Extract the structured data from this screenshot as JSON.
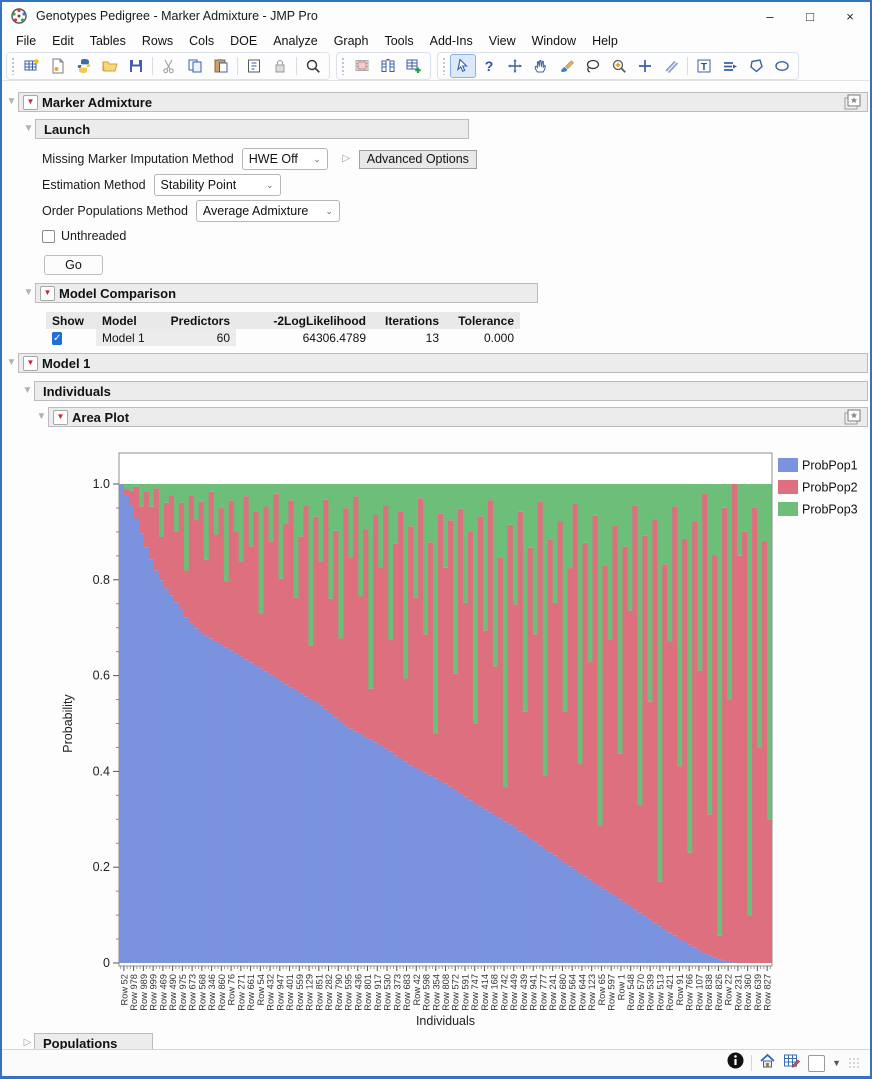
{
  "window": {
    "title": "Genotypes Pedigree - Marker Admixture - JMP Pro",
    "controls": {
      "minimize": "–",
      "maximize": "□",
      "close": "×"
    }
  },
  "menu": {
    "items": [
      "File",
      "Edit",
      "Tables",
      "Rows",
      "Cols",
      "DOE",
      "Analyze",
      "Graph",
      "Tools",
      "Add-Ins",
      "View",
      "Window",
      "Help"
    ]
  },
  "toolbar": {
    "selected": "arrow-tool",
    "groups": [
      [
        "new-data-table",
        "new-script",
        "python",
        "open",
        "save",
        "sep",
        "cut",
        "copy",
        "paste",
        "sep",
        "journal",
        "lock",
        "sep",
        "search"
      ],
      [
        "data-grid",
        "split-columns",
        "add-rows"
      ],
      [
        "arrow-tool",
        "help-tool",
        "move-tool",
        "grabber-tool",
        "brush-tool",
        "lasso-tool",
        "magnifier-tool",
        "crosshair-tool",
        "annotate-tool",
        "sep",
        "text-tool",
        "line-tool",
        "polygon-tool",
        "oval-tool"
      ]
    ]
  },
  "outline": {
    "marker_admixture": {
      "title": "Marker Admixture"
    },
    "launch": {
      "title": "Launch",
      "fields": [
        {
          "label": "Missing Marker Imputation Method",
          "value": "HWE Off"
        },
        {
          "label": "Estimation Method",
          "value": "Stability Point"
        },
        {
          "label": "Order Populations Method",
          "value": "Average Admixture"
        }
      ],
      "advanced_options_label": "Advanced Options",
      "unthreaded_label": "Unthreaded",
      "unthreaded_checked": false,
      "go_label": "Go"
    },
    "model_comparison": {
      "title": "Model Comparison",
      "table": {
        "columns": [
          "Show",
          "Model",
          "Predictors",
          "-2LogLikelihood",
          "Iterations",
          "Tolerance"
        ],
        "rows": [
          {
            "show": true,
            "model": "Model 1",
            "predictors": "60",
            "neg2loglikelihood": "64306.4789",
            "iterations": "13",
            "tolerance": "0.000"
          }
        ]
      }
    },
    "model1": {
      "title": "Model 1"
    },
    "individuals": {
      "title": "Individuals"
    },
    "area_plot": {
      "title": "Area Plot"
    },
    "populations": {
      "title": "Populations"
    }
  },
  "chart_data": {
    "type": "area",
    "title": "",
    "xlabel": "Individuals",
    "ylabel": "Probability",
    "ylim": [
      0,
      1.065
    ],
    "grid": false,
    "legend_position": "right",
    "y_tick_values": [
      0,
      0.2,
      0.4,
      0.6,
      0.8,
      1.0
    ],
    "y_tick_labels": [
      "0",
      "0.2",
      "0.4",
      "0.6",
      "0.8",
      "1.0"
    ],
    "series": [
      {
        "name": "ProbPop1",
        "color": "#7b93de"
      },
      {
        "name": "ProbPop2",
        "color": "#dd6f7e"
      },
      {
        "name": "ProbPop3",
        "color": "#6cbe78"
      }
    ],
    "x_tick_labels": [
      "Row 52",
      "Row 978",
      "Row 989",
      "Row 999",
      "Row 469",
      "Row 490",
      "Row 975",
      "Row 673",
      "Row 568",
      "Row 346",
      "Row 860",
      "Row 76",
      "Row 271",
      "Row 661",
      "Row 54",
      "Row 432",
      "Row 947",
      "Row 401",
      "Row 559",
      "Row 129",
      "Row 851",
      "Row 282",
      "Row 790",
      "Row 595",
      "Row 436",
      "Row 801",
      "Row 917",
      "Row 530",
      "Row 373",
      "Row 683",
      "Row 42",
      "Row 598",
      "Row 354",
      "Row 808",
      "Row 572",
      "Row 591",
      "Row 747",
      "Row 414",
      "Row 168",
      "Row 742",
      "Row 449",
      "Row 439",
      "Row 941",
      "Row 777",
      "Row 241",
      "Row 680",
      "Row 564",
      "Row 644",
      "Row 123",
      "Row 65",
      "Row 597",
      "Row 1",
      "Row 548",
      "Row 570",
      "Row 539",
      "Row 513",
      "Row 421",
      "Row 91",
      "Row 766",
      "Row 107",
      "Row 838",
      "Row 826",
      "Row 22",
      "Row 231",
      "Row 360",
      "Row 639",
      "Row 827"
    ],
    "pop1_top": [
      1.0,
      0.977,
      0.954,
      0.928,
      0.897,
      0.868,
      0.842,
      0.819,
      0.799,
      0.782,
      0.768,
      0.753,
      0.737,
      0.722,
      0.71,
      0.699,
      0.69,
      0.683,
      0.677,
      0.671,
      0.665,
      0.659,
      0.653,
      0.646,
      0.64,
      0.634,
      0.628,
      0.621,
      0.615,
      0.608,
      0.602,
      0.595,
      0.588,
      0.582,
      0.576,
      0.57,
      0.563,
      0.557,
      0.551,
      0.545,
      0.537,
      0.529,
      0.521,
      0.512,
      0.504,
      0.496,
      0.489,
      0.483,
      0.478,
      0.472,
      0.466,
      0.461,
      0.455,
      0.448,
      0.441,
      0.434,
      0.427,
      0.42,
      0.413,
      0.407,
      0.402,
      0.397,
      0.391,
      0.386,
      0.38,
      0.375,
      0.368,
      0.361,
      0.354,
      0.347,
      0.34,
      0.333,
      0.327,
      0.321,
      0.315,
      0.308,
      0.302,
      0.296,
      0.29,
      0.283,
      0.275,
      0.268,
      0.26,
      0.253,
      0.246,
      0.238,
      0.231,
      0.224,
      0.217,
      0.209,
      0.202,
      0.195,
      0.188,
      0.181,
      0.174,
      0.167,
      0.16,
      0.153,
      0.147,
      0.14,
      0.133,
      0.126,
      0.119,
      0.112,
      0.105,
      0.098,
      0.091,
      0.084,
      0.077,
      0.07,
      0.063,
      0.057,
      0.05,
      0.044,
      0.038,
      0.032,
      0.026,
      0.02,
      0.015,
      0.011,
      0.007,
      0.005,
      0.002,
      0.001,
      0.0,
      0.0,
      0.0,
      0.0,
      0.0,
      0.0,
      0.0
    ],
    "pop2_fill_fraction": [
      0.3,
      0.5,
      0.7,
      0.92,
      0.55,
      0.88,
      0.7,
      0.95,
      0.45,
      0.82,
      0.9,
      0.6,
      0.85,
      0.35,
      0.92,
      0.75,
      0.88,
      0.5,
      0.95,
      0.68,
      0.85,
      0.4,
      0.9,
      0.72,
      0.55,
      0.93,
      0.65,
      0.85,
      0.3,
      0.88,
      0.7,
      0.95,
      0.52,
      0.8,
      0.92,
      0.45,
      0.75,
      0.9,
      0.25,
      0.85,
      0.65,
      0.93,
      0.5,
      0.8,
      0.35,
      0.9,
      0.7,
      0.95,
      0.55,
      0.82,
      0.2,
      0.88,
      0.68,
      0.92,
      0.42,
      0.78,
      0.9,
      0.3,
      0.85,
      0.6,
      0.95,
      0.48,
      0.8,
      0.15,
      0.9,
      0.72,
      0.88,
      0.38,
      0.92,
      0.62,
      0.85,
      0.25,
      0.9,
      0.55,
      0.95,
      0.45,
      0.78,
      0.1,
      0.88,
      0.65,
      0.92,
      0.35,
      0.82,
      0.58,
      0.95,
      0.2,
      0.85,
      0.68,
      0.9,
      0.4,
      0.78,
      0.95,
      0.28,
      0.85,
      0.55,
      0.92,
      0.15,
      0.8,
      0.62,
      0.9,
      0.35,
      0.85,
      0.7,
      0.95,
      0.25,
      0.88,
      0.5,
      0.92,
      0.1,
      0.82,
      0.65,
      0.95,
      0.38,
      0.88,
      0.2,
      0.92,
      0.6,
      0.98,
      0.3,
      0.85,
      0.05,
      0.95,
      0.55,
      1.0,
      0.85,
      0.9,
      0.1,
      0.95,
      0.45,
      0.88,
      0.3
    ]
  },
  "statusbar": {
    "dropdown_caret": "▼"
  }
}
